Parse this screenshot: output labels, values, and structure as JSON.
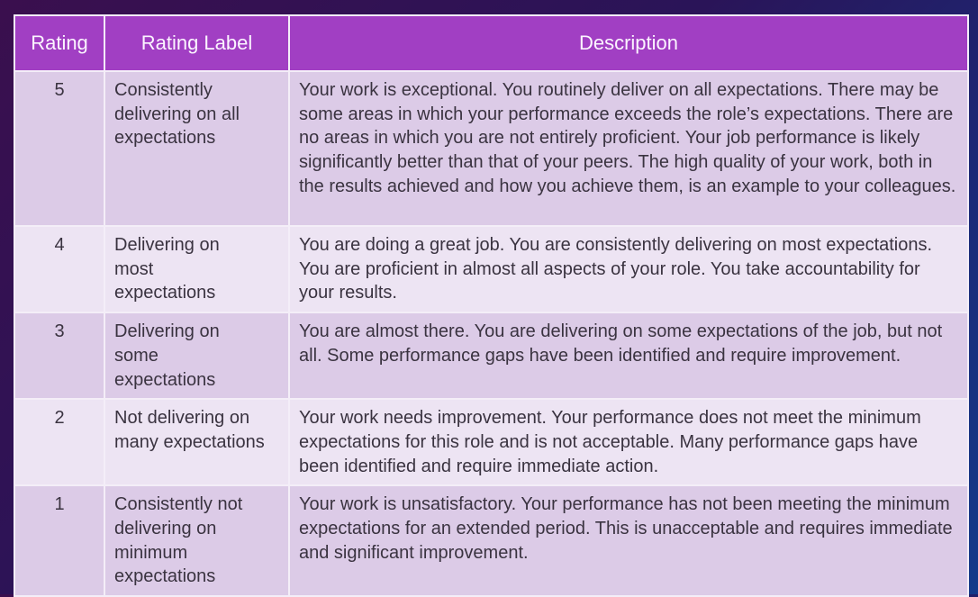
{
  "table": {
    "headers": [
      "Rating",
      "Rating Label",
      "Description"
    ],
    "rows": [
      {
        "rating": "5",
        "label": "Consistently delivering on all expectations",
        "description": "Your work is exceptional. You routinely deliver on all expectations. There may be some areas in which your performance exceeds the role’s expectations. There are no areas in which you are not entirely proficient. Your job performance is likely significantly better than that of your peers. The high quality of your work, both in the results achieved and how you achieve them, is an example to your colleagues."
      },
      {
        "rating": "4",
        "label": "Delivering on most expectations",
        "description": "You are doing a great job.  You are consistently delivering on most expectations.  You are proficient in almost all aspects of your role.  You take accountability for your results."
      },
      {
        "rating": "3",
        "label": "Delivering on some expectations",
        "description": "You are almost there. You are delivering on some expectations of the job, but not all. Some performance gaps have been identified and require improvement."
      },
      {
        "rating": "2",
        "label": "Not delivering on many expectations",
        "description": "Your work needs improvement.  Your performance does not meet the minimum expectations for this role and is not acceptable. Many performance gaps have been identified and require immediate action."
      },
      {
        "rating": "1",
        "label": "Consistently not delivering on minimum expectations",
        "description": "Your work is unsatisfactory.  Your performance has not been meeting the minimum expectations for an extended period.  This is unacceptable and requires immediate and significant improvement."
      }
    ]
  }
}
